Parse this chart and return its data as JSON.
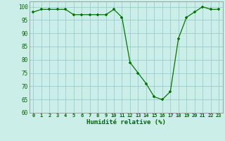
{
  "x": [
    0,
    1,
    2,
    3,
    4,
    5,
    6,
    7,
    8,
    9,
    10,
    11,
    12,
    13,
    14,
    15,
    16,
    17,
    18,
    19,
    20,
    21,
    22,
    23
  ],
  "y": [
    98,
    99,
    99,
    99,
    99,
    97,
    97,
    97,
    97,
    97,
    99,
    96,
    79,
    75,
    71,
    66,
    65,
    68,
    88,
    96,
    98,
    100,
    99,
    99
  ],
  "line_color": "#007700",
  "marker_color": "#007700",
  "bg_color": "#cceee8",
  "grid_color": "#99cccc",
  "xlabel": "Humidité relative (%)",
  "xlabel_color": "#006600",
  "tick_color": "#006600",
  "ylim": [
    60,
    102
  ],
  "yticks": [
    60,
    65,
    70,
    75,
    80,
    85,
    90,
    95,
    100
  ],
  "xlim": [
    -0.5,
    23.5
  ]
}
